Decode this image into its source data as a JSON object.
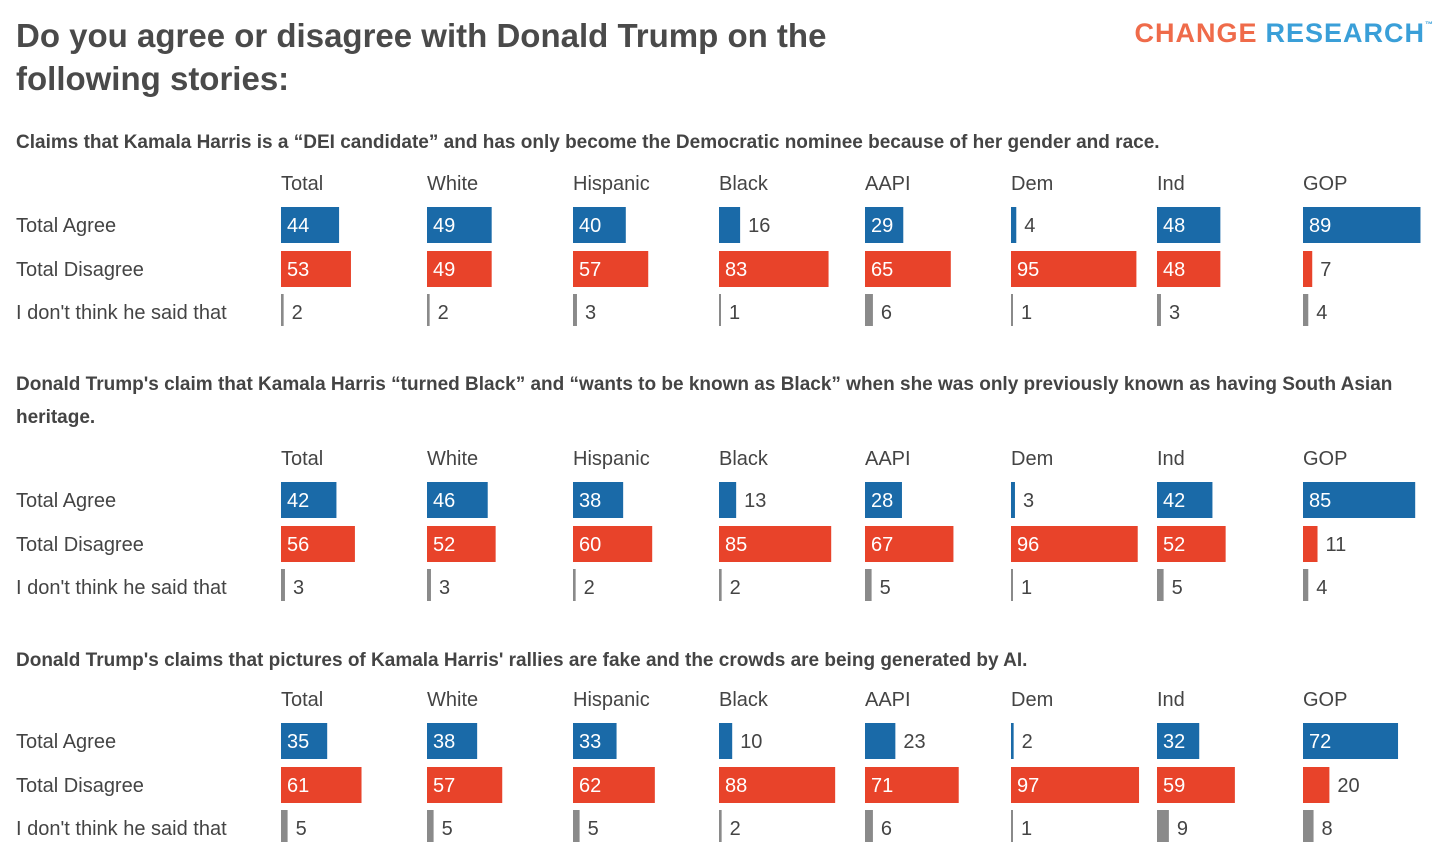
{
  "title": "Do you agree or disagree with Donald Trump on the following stories:",
  "logo": {
    "word1": "CHANGE",
    "word2": "RESEARCH",
    "tm": "™"
  },
  "colors": {
    "agree": "#1a6aa8",
    "disagree": "#e8432a",
    "unsure": "#8a8a8a",
    "text": "#444444"
  },
  "questions": [
    "Claims that Kamala Harris is a “DEI candidate” and has only become the Democratic nominee because of her gender and race.",
    "Donald Trump's claim that Kamala Harris “turned Black” and “wants to be known as Black” when she was only previously known as having South Asian heritage.",
    "Donald Trump's claims that pictures of Kamala Harris' rallies are fake and the crowds are being generated by AI."
  ],
  "chart_data": [
    {
      "type": "bar",
      "categories": [
        "Total",
        "White",
        "Hispanic",
        "Black",
        "AAPI",
        "Dem",
        "Ind",
        "GOP"
      ],
      "series": [
        {
          "name": "Total Agree",
          "values": [
            44,
            49,
            40,
            16,
            29,
            4,
            48,
            89
          ]
        },
        {
          "name": "Total Disagree",
          "values": [
            53,
            49,
            57,
            83,
            65,
            95,
            48,
            7
          ]
        },
        {
          "name": "I don't think he said that",
          "values": [
            2,
            2,
            3,
            1,
            6,
            1,
            3,
            4
          ]
        }
      ]
    },
    {
      "type": "bar",
      "categories": [
        "Total",
        "White",
        "Hispanic",
        "Black",
        "AAPI",
        "Dem",
        "Ind",
        "GOP"
      ],
      "series": [
        {
          "name": "Total Agree",
          "values": [
            42,
            46,
            38,
            13,
            28,
            3,
            42,
            85
          ]
        },
        {
          "name": "Total Disagree",
          "values": [
            56,
            52,
            60,
            85,
            67,
            96,
            52,
            11
          ]
        },
        {
          "name": "I don't think he said that",
          "values": [
            3,
            3,
            2,
            2,
            5,
            1,
            5,
            4
          ]
        }
      ]
    },
    {
      "type": "bar",
      "categories": [
        "Total",
        "White",
        "Hispanic",
        "Black",
        "AAPI",
        "Dem",
        "Ind",
        "GOP"
      ],
      "series": [
        {
          "name": "Total Agree",
          "values": [
            35,
            38,
            33,
            10,
            23,
            2,
            32,
            72
          ]
        },
        {
          "name": "Total Disagree",
          "values": [
            61,
            57,
            62,
            88,
            71,
            97,
            59,
            20
          ]
        },
        {
          "name": "I don't think he said that",
          "values": [
            5,
            5,
            5,
            2,
            6,
            1,
            9,
            8
          ]
        }
      ]
    }
  ]
}
